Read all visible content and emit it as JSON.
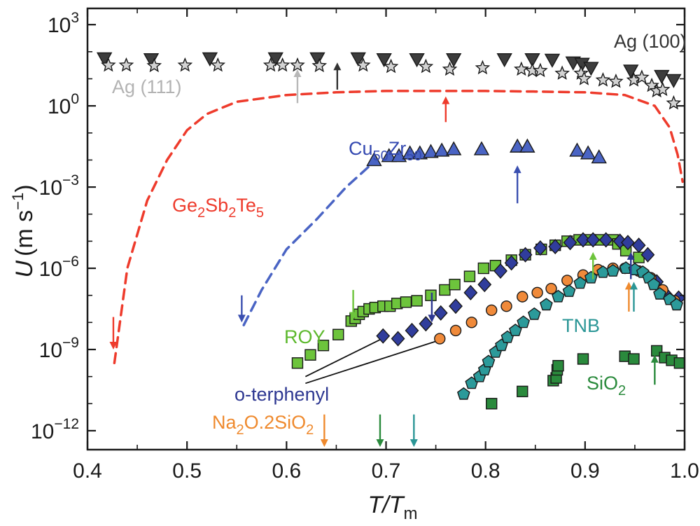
{
  "chart_data": {
    "type": "scatter",
    "x_axis": {
      "label_main": "T/T",
      "label_sub": "m",
      "range": [
        0.4,
        1.0
      ],
      "ticks": [
        0.4,
        0.5,
        0.6,
        0.7,
        0.8,
        0.9,
        1.0
      ],
      "tick_labels": [
        "0.4",
        "0.5",
        "0.6",
        "0.7",
        "0.8",
        "0.9",
        "1.0"
      ]
    },
    "y_axis": {
      "label_var": "U",
      "label_unit": "(m s",
      "label_exp": "−1",
      "label_close": ")",
      "scale": "log",
      "range_log10": [
        -12.7,
        3.6
      ],
      "ticks_log10": [
        -12,
        -9,
        -6,
        -3,
        0,
        3
      ],
      "tick_labels": [
        {
          "base": "10",
          "exp": "−12"
        },
        {
          "base": "10",
          "exp": "−9"
        },
        {
          "base": "10",
          "exp": "−6"
        },
        {
          "base": "10",
          "exp": "−3"
        },
        {
          "base": "10",
          "exp": "0"
        },
        {
          "base": "10",
          "exp": "3"
        }
      ]
    },
    "series": [
      {
        "name": "Ag (100)",
        "marker": "triangle-down",
        "color": "#3d3d3d",
        "label_color": "#333333",
        "points": [
          [
            0.417,
            1.75
          ],
          [
            0.464,
            1.72
          ],
          [
            0.523,
            1.75
          ],
          [
            0.589,
            1.75
          ],
          [
            0.631,
            1.75
          ],
          [
            0.672,
            1.75
          ],
          [
            0.698,
            1.72
          ],
          [
            0.731,
            1.72
          ],
          [
            0.768,
            1.72
          ],
          [
            0.819,
            1.72
          ],
          [
            0.847,
            1.72
          ],
          [
            0.867,
            1.7
          ],
          [
            0.888,
            1.6
          ],
          [
            0.897,
            1.55
          ],
          [
            0.906,
            1.4
          ],
          [
            0.946,
            1.3
          ],
          [
            0.977,
            1.1
          ],
          [
            0.989,
            0.95
          ]
        ]
      },
      {
        "name": "Ag (111)",
        "marker": "star",
        "color": "#d3d3d3",
        "label_color": "#b3b3b3",
        "points": [
          [
            0.421,
            1.5
          ],
          [
            0.439,
            1.5
          ],
          [
            0.467,
            1.48
          ],
          [
            0.498,
            1.5
          ],
          [
            0.531,
            1.5
          ],
          [
            0.584,
            1.5
          ],
          [
            0.596,
            1.5
          ],
          [
            0.611,
            1.5
          ],
          [
            0.633,
            1.48
          ],
          [
            0.677,
            1.5
          ],
          [
            0.705,
            1.45
          ],
          [
            0.74,
            1.45
          ],
          [
            0.764,
            1.35
          ],
          [
            0.797,
            1.4
          ],
          [
            0.836,
            1.35
          ],
          [
            0.847,
            1.3
          ],
          [
            0.855,
            1.3
          ],
          [
            0.877,
            1.2
          ],
          [
            0.896,
            1.2
          ],
          [
            0.899,
            1.0
          ],
          [
            0.918,
            0.95
          ],
          [
            0.931,
            0.9
          ],
          [
            0.949,
            0.95
          ],
          [
            0.957,
            1.05
          ],
          [
            0.967,
            0.75
          ],
          [
            0.972,
            0.55
          ],
          [
            0.978,
            0.6
          ],
          [
            0.989,
            0.1
          ]
        ]
      },
      {
        "name": "Cu50Zr50",
        "label_main": "Cu",
        "label_sub1": "50",
        "label_mid": "Zr",
        "label_sub2": "50",
        "marker": "triangle-up",
        "color": "#4a64c4",
        "label_color": "#3348b0",
        "points": [
          [
            0.688,
            -2.0
          ],
          [
            0.703,
            -1.85
          ],
          [
            0.713,
            -1.85
          ],
          [
            0.724,
            -1.75
          ],
          [
            0.734,
            -1.75
          ],
          [
            0.745,
            -1.7
          ],
          [
            0.756,
            -1.65
          ],
          [
            0.768,
            -1.6
          ],
          [
            0.796,
            -1.6
          ],
          [
            0.832,
            -1.5
          ],
          [
            0.842,
            -1.5
          ],
          [
            0.892,
            -1.65
          ],
          [
            0.903,
            -1.75
          ],
          [
            0.914,
            -1.9
          ]
        ]
      },
      {
        "name": "ROY",
        "marker": "square",
        "color": "#6dc43c",
        "label_color": "#5cb82c",
        "points": [
          [
            0.611,
            -9.5
          ],
          [
            0.624,
            -9.2
          ],
          [
            0.637,
            -8.85
          ],
          [
            0.652,
            -8.45
          ],
          [
            0.665,
            -7.95
          ],
          [
            0.669,
            -7.85
          ],
          [
            0.673,
            -7.7
          ],
          [
            0.677,
            -7.6
          ],
          [
            0.683,
            -7.5
          ],
          [
            0.689,
            -7.45
          ],
          [
            0.697,
            -7.4
          ],
          [
            0.704,
            -7.4
          ],
          [
            0.711,
            -7.3
          ],
          [
            0.72,
            -7.25
          ],
          [
            0.731,
            -7.2
          ],
          [
            0.745,
            -7.0
          ],
          [
            0.759,
            -6.8
          ],
          [
            0.769,
            -6.6
          ],
          [
            0.784,
            -6.3
          ],
          [
            0.798,
            -6.0
          ],
          [
            0.81,
            -5.9
          ],
          [
            0.826,
            -5.7
          ],
          [
            0.84,
            -5.5
          ],
          [
            0.856,
            -5.3
          ],
          [
            0.87,
            -5.15
          ],
          [
            0.882,
            -5.0
          ],
          [
            0.894,
            -4.95
          ],
          [
            0.905,
            -4.95
          ],
          [
            0.916,
            -4.95
          ],
          [
            0.928,
            -4.95
          ],
          [
            0.933,
            -5.1
          ],
          [
            0.941,
            -5.35
          ],
          [
            0.954,
            -5.6
          ]
        ]
      },
      {
        "name": "o-terphenyl",
        "marker": "diamond",
        "color": "#303d9c",
        "label_color": "#2d3791",
        "points": [
          [
            0.697,
            -8.5
          ],
          [
            0.712,
            -8.6
          ],
          [
            0.726,
            -8.3
          ],
          [
            0.74,
            -8.05
          ],
          [
            0.755,
            -7.65
          ],
          [
            0.77,
            -7.4
          ],
          [
            0.785,
            -6.9
          ],
          [
            0.799,
            -6.6
          ],
          [
            0.815,
            -6.1
          ],
          [
            0.826,
            -5.8
          ],
          [
            0.84,
            -5.5
          ],
          [
            0.855,
            -5.25
          ],
          [
            0.87,
            -5.2
          ],
          [
            0.885,
            -5.05
          ],
          [
            0.898,
            -4.95
          ],
          [
            0.908,
            -4.95
          ],
          [
            0.921,
            -4.95
          ],
          [
            0.935,
            -5.0
          ],
          [
            0.943,
            -5.05
          ],
          [
            0.954,
            -5.15
          ],
          [
            0.963,
            -5.5
          ],
          [
            0.972,
            -6.5
          ],
          [
            0.982,
            -7.0
          ],
          [
            0.994,
            -7.1
          ]
        ]
      },
      {
        "name": "Na2O.2SiO2",
        "label_main": "Na",
        "label_sub1": "2",
        "label_mid": "O.2SiO",
        "label_sub2": "2",
        "marker": "circle",
        "color": "#f08a3a",
        "label_color": "#ef8a2e",
        "points": [
          [
            0.754,
            -8.6
          ],
          [
            0.77,
            -8.3
          ],
          [
            0.786,
            -8.0
          ],
          [
            0.806,
            -7.55
          ],
          [
            0.821,
            -7.4
          ],
          [
            0.837,
            -7.05
          ],
          [
            0.852,
            -6.9
          ],
          [
            0.866,
            -6.75
          ],
          [
            0.882,
            -6.45
          ],
          [
            0.898,
            -6.25
          ],
          [
            0.913,
            -6.05
          ],
          [
            0.928,
            -6.0
          ],
          [
            0.94,
            -6.0
          ],
          [
            0.954,
            -6.1
          ],
          [
            0.966,
            -6.35
          ],
          [
            0.978,
            -6.8
          ],
          [
            0.99,
            -7.2
          ]
        ]
      },
      {
        "name": "TNB",
        "marker": "pentagon",
        "color": "#2b9a9a",
        "label_color": "#2b9696",
        "points": [
          [
            0.778,
            -10.65
          ],
          [
            0.786,
            -10.25
          ],
          [
            0.794,
            -10.0
          ],
          [
            0.799,
            -9.75
          ],
          [
            0.803,
            -9.45
          ],
          [
            0.81,
            -9.1
          ],
          [
            0.816,
            -8.85
          ],
          [
            0.822,
            -8.55
          ],
          [
            0.83,
            -8.3
          ],
          [
            0.838,
            -8.0
          ],
          [
            0.849,
            -7.7
          ],
          [
            0.861,
            -7.35
          ],
          [
            0.873,
            -7.05
          ],
          [
            0.884,
            -6.85
          ],
          [
            0.895,
            -6.55
          ],
          [
            0.906,
            -6.35
          ],
          [
            0.918,
            -6.15
          ],
          [
            0.928,
            -6.1
          ],
          [
            0.941,
            -6.0
          ],
          [
            0.95,
            -6.05
          ],
          [
            0.958,
            -6.15
          ],
          [
            0.964,
            -6.35
          ],
          [
            0.969,
            -6.6
          ],
          [
            0.975,
            -6.95
          ],
          [
            0.985,
            -7.15
          ],
          [
            0.992,
            -7.35
          ]
        ]
      },
      {
        "name": "SiO2",
        "label_main": "SiO",
        "label_sub": "2",
        "marker": "square",
        "color": "#2a8a3c",
        "label_color": "#2a8a3c",
        "points": [
          [
            0.806,
            -11.0
          ],
          [
            0.837,
            -10.55
          ],
          [
            0.868,
            -10.15
          ],
          [
            0.871,
            -10.05
          ],
          [
            0.872,
            -9.75
          ],
          [
            0.873,
            -9.6
          ],
          [
            0.898,
            -9.35
          ],
          [
            0.94,
            -9.25
          ],
          [
            0.949,
            -9.35
          ],
          [
            0.972,
            -9.05
          ],
          [
            0.98,
            -9.3
          ],
          [
            0.987,
            -9.4
          ],
          [
            0.995,
            -9.5
          ]
        ]
      }
    ],
    "curves": [
      {
        "name": "Ge2Sb2Te5",
        "label_main": "Ge",
        "label_sub1": "2",
        "label_mid1": "Sb",
        "label_sub2": "2",
        "label_mid2": "Te",
        "label_sub3": "5",
        "style": "dashed",
        "color": "#ee3b2c",
        "label_color": "#ee3b2c",
        "points": [
          [
            0.427,
            -9.5
          ],
          [
            0.44,
            -6.0
          ],
          [
            0.46,
            -3.5
          ],
          [
            0.48,
            -2.0
          ],
          [
            0.5,
            -0.9
          ],
          [
            0.52,
            -0.3
          ],
          [
            0.55,
            0.15
          ],
          [
            0.6,
            0.4
          ],
          [
            0.65,
            0.5
          ],
          [
            0.7,
            0.55
          ],
          [
            0.75,
            0.55
          ],
          [
            0.8,
            0.55
          ],
          [
            0.85,
            0.53
          ],
          [
            0.9,
            0.5
          ],
          [
            0.94,
            0.4
          ],
          [
            0.97,
            0.0
          ],
          [
            0.985,
            -0.8
          ],
          [
            0.993,
            -1.8
          ],
          [
            0.998,
            -2.8
          ]
        ]
      },
      {
        "name": "Cu50Zr50 fit",
        "style": "dashed",
        "color": "#4a64c4",
        "points": [
          [
            0.557,
            -8.1
          ],
          [
            0.575,
            -6.8
          ],
          [
            0.6,
            -5.3
          ],
          [
            0.63,
            -4.2
          ],
          [
            0.66,
            -3.0
          ],
          [
            0.69,
            -2.0
          ]
        ]
      }
    ],
    "arrows": [
      {
        "x": 0.611,
        "y_from": 0.1,
        "y_to": 1.35,
        "color": "#b8b8b8"
      },
      {
        "x": 0.651,
        "y_from": 0.6,
        "y_to": 1.6,
        "color": "#333333"
      },
      {
        "x": 0.76,
        "y_from": -0.6,
        "y_to": 0.35,
        "color": "#ee3b2c"
      },
      {
        "x": 0.832,
        "y_from": -3.6,
        "y_to": -2.2,
        "color": "#3a4fb0"
      },
      {
        "x": 0.426,
        "y_from": -7.8,
        "y_to": -9.0,
        "color": "#ee3b2c"
      },
      {
        "x": 0.555,
        "y_from": -7.0,
        "y_to": -8.0,
        "color": "#3a4fb0"
      },
      {
        "x": 0.667,
        "y_from": -6.8,
        "y_to": -7.9,
        "color": "#6dc43c"
      },
      {
        "x": 0.746,
        "y_from": -6.9,
        "y_to": -8.0,
        "color": "#2d3791"
      },
      {
        "x": 0.908,
        "y_from": -6.4,
        "y_to": -5.4,
        "color": "#6dc43c"
      },
      {
        "x": 0.946,
        "y_from": -6.4,
        "y_to": -5.4,
        "color": "#2d3791"
      },
      {
        "x": 0.944,
        "y_from": -7.6,
        "y_to": -6.5,
        "color": "#ef8a2e"
      },
      {
        "x": 0.949,
        "y_from": -7.6,
        "y_to": -6.5,
        "color": "#2b9696"
      },
      {
        "x": 0.97,
        "y_from": -10.3,
        "y_to": -9.2,
        "color": "#2a8a3c"
      },
      {
        "x": 0.638,
        "y_from": -11.4,
        "y_to": -12.6,
        "color": "#ef8a2e"
      },
      {
        "x": 0.694,
        "y_from": -11.4,
        "y_to": -12.6,
        "color": "#2a8a3c"
      },
      {
        "x": 0.728,
        "y_from": -11.4,
        "y_to": -12.6,
        "color": "#2b9696"
      }
    ],
    "leader_lines": [
      {
        "from": [
          0.619,
          -10.0
        ],
        "to": [
          0.696,
          -8.6
        ],
        "color": "#111111"
      },
      {
        "from": [
          0.619,
          -10.25
        ],
        "to": [
          0.75,
          -8.7
        ],
        "color": "#111111"
      }
    ],
    "grid": false,
    "legend": "none"
  }
}
